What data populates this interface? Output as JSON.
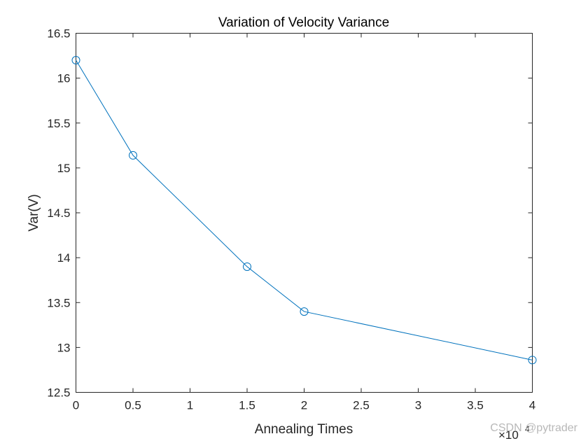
{
  "chart_data": {
    "type": "line",
    "title": "Variation of Velocity Variance",
    "xlabel": "Annealing Times",
    "ylabel": "Var(V)",
    "x_exponent_label": "×10",
    "x_exponent_power": "4",
    "xlim": [
      0,
      4
    ],
    "ylim": [
      12.5,
      16.5
    ],
    "x_ticks": [
      0,
      0.5,
      1,
      1.5,
      2,
      2.5,
      3,
      3.5,
      4
    ],
    "x_tick_labels": [
      "0",
      "0.5",
      "1",
      "1.5",
      "2",
      "2.5",
      "3",
      "3.5",
      "4"
    ],
    "y_ticks": [
      12.5,
      13,
      13.5,
      14,
      14.5,
      15,
      15.5,
      16,
      16.5
    ],
    "y_tick_labels": [
      "12.5",
      "13",
      "13.5",
      "14",
      "14.5",
      "15",
      "15.5",
      "16",
      "16.5"
    ],
    "grid": false,
    "marker": "circle",
    "series": [
      {
        "color": "#0072BD",
        "x": [
          0,
          0.5,
          1.5,
          2,
          4
        ],
        "y": [
          16.2,
          15.14,
          13.9,
          13.4,
          12.86
        ]
      }
    ]
  },
  "watermark": "CSDN @pytrader"
}
